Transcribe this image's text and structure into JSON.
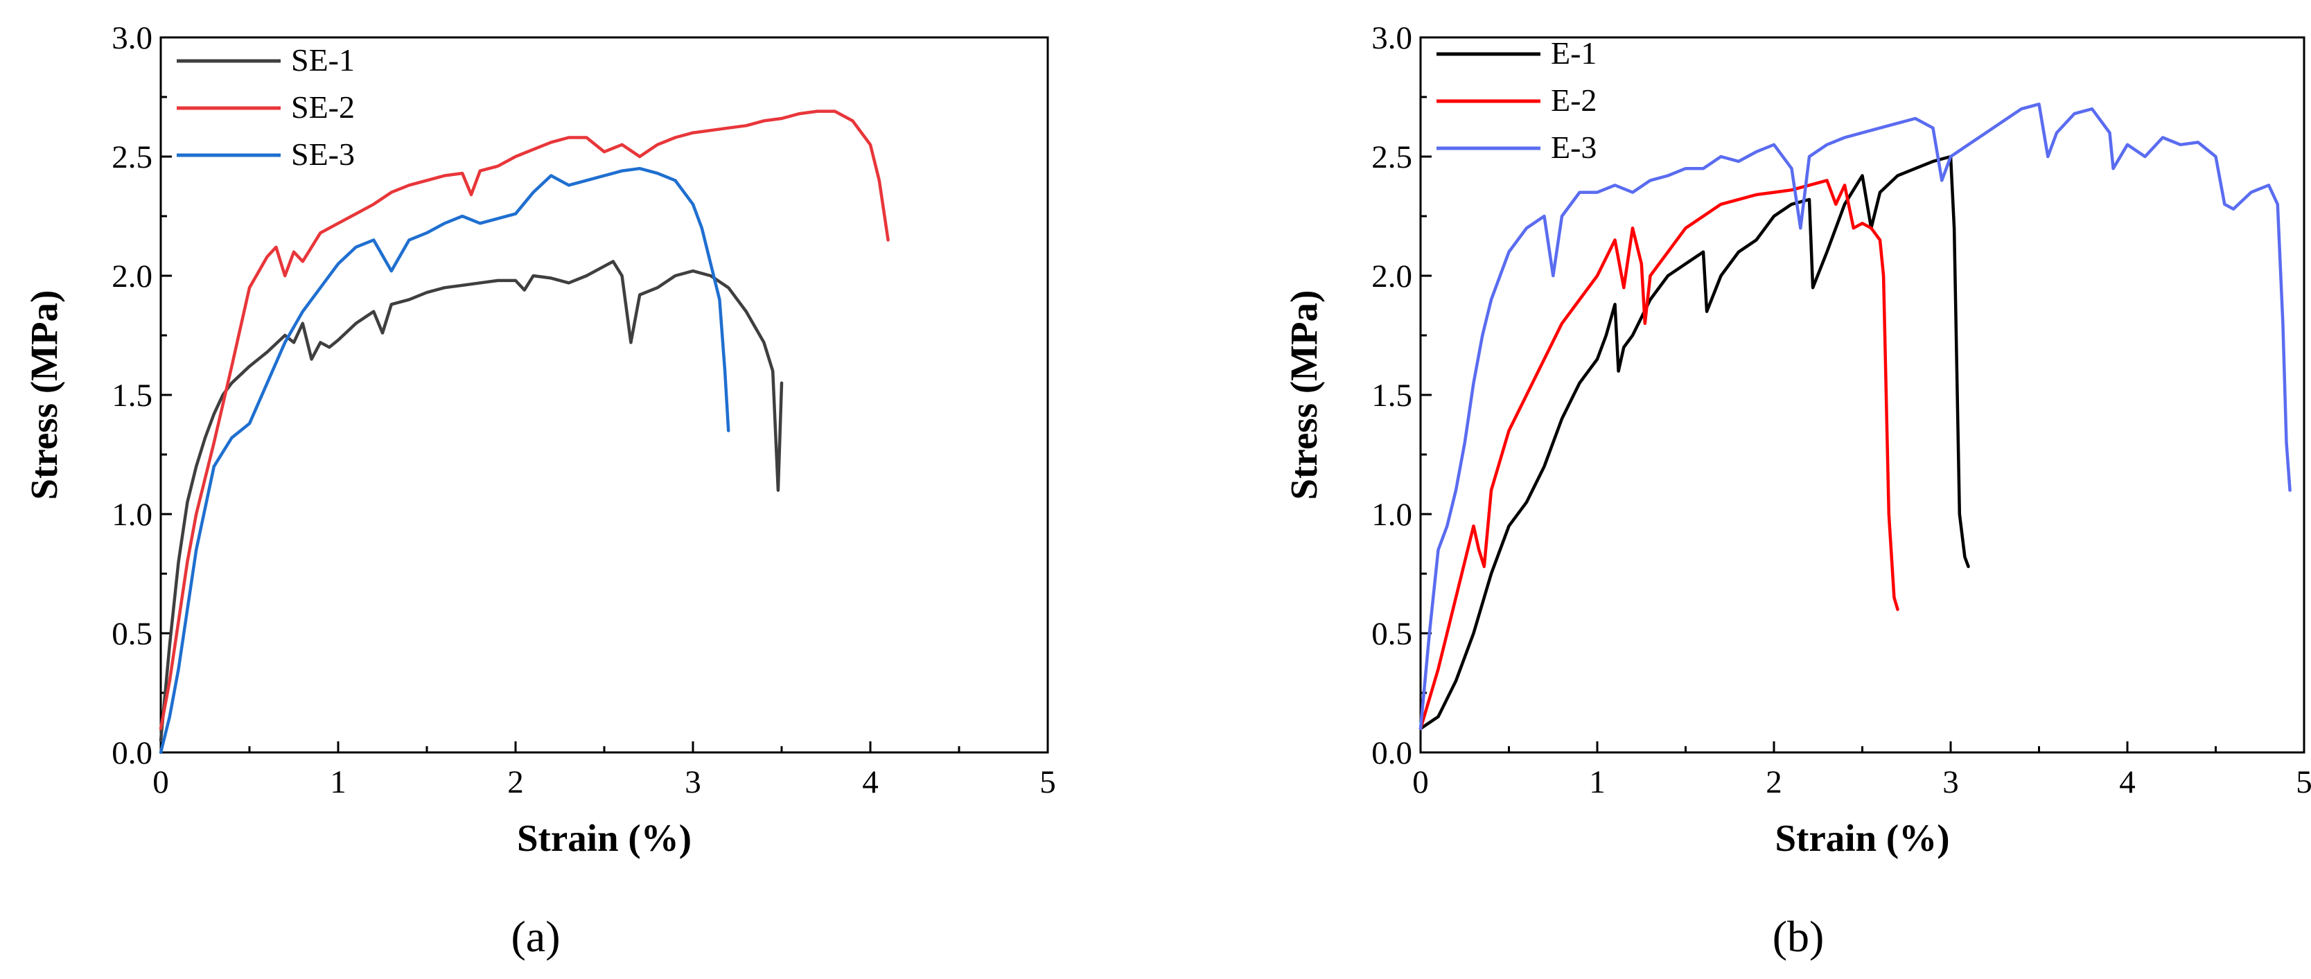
{
  "chart_data": [
    {
      "type": "line",
      "panel_label": "(a)",
      "xlabel": "Strain (%)",
      "ylabel": "Stress (MPa)",
      "xlim": [
        0,
        5
      ],
      "ylim": [
        0,
        3.0
      ],
      "xticks": [
        "0",
        "1",
        "2",
        "3",
        "4",
        "5"
      ],
      "yticks": [
        "0.0",
        "0.5",
        "1.0",
        "1.5",
        "2.0",
        "2.5",
        "3.0"
      ],
      "legend_position": "top-left",
      "series": [
        {
          "name": "SE-1",
          "color": "#3f3f3f",
          "x": [
            0,
            0.05,
            0.1,
            0.15,
            0.2,
            0.25,
            0.3,
            0.35,
            0.4,
            0.5,
            0.6,
            0.7,
            0.75,
            0.8,
            0.85,
            0.9,
            0.95,
            1.0,
            1.1,
            1.2,
            1.25,
            1.3,
            1.4,
            1.5,
            1.6,
            1.7,
            1.8,
            1.9,
            2.0,
            2.05,
            2.1,
            2.2,
            2.3,
            2.4,
            2.5,
            2.55,
            2.6,
            2.65,
            2.7,
            2.8,
            2.9,
            3.0,
            3.1,
            3.2,
            3.3,
            3.4,
            3.45,
            3.48,
            3.5
          ],
          "y": [
            0.05,
            0.45,
            0.8,
            1.05,
            1.2,
            1.32,
            1.42,
            1.5,
            1.55,
            1.62,
            1.68,
            1.75,
            1.72,
            1.8,
            1.65,
            1.72,
            1.7,
            1.73,
            1.8,
            1.85,
            1.76,
            1.88,
            1.9,
            1.93,
            1.95,
            1.96,
            1.97,
            1.98,
            1.98,
            1.94,
            2.0,
            1.99,
            1.97,
            2.0,
            2.04,
            2.06,
            2.0,
            1.72,
            1.92,
            1.95,
            2.0,
            2.02,
            2.0,
            1.95,
            1.85,
            1.72,
            1.6,
            1.1,
            1.55
          ]
        },
        {
          "name": "SE-2",
          "color": "#e8363a",
          "x": [
            0,
            0.05,
            0.1,
            0.15,
            0.2,
            0.3,
            0.4,
            0.5,
            0.6,
            0.65,
            0.7,
            0.75,
            0.8,
            0.9,
            1.0,
            1.1,
            1.2,
            1.3,
            1.4,
            1.5,
            1.6,
            1.7,
            1.75,
            1.8,
            1.9,
            2.0,
            2.1,
            2.2,
            2.3,
            2.4,
            2.5,
            2.6,
            2.7,
            2.8,
            2.9,
            3.0,
            3.1,
            3.2,
            3.3,
            3.4,
            3.5,
            3.6,
            3.7,
            3.8,
            3.9,
            4.0,
            4.05,
            4.08,
            4.1
          ],
          "y": [
            0.1,
            0.3,
            0.55,
            0.8,
            1.0,
            1.3,
            1.62,
            1.95,
            2.08,
            2.12,
            2.0,
            2.1,
            2.06,
            2.18,
            2.22,
            2.26,
            2.3,
            2.35,
            2.38,
            2.4,
            2.42,
            2.43,
            2.34,
            2.44,
            2.46,
            2.5,
            2.53,
            2.56,
            2.58,
            2.58,
            2.52,
            2.55,
            2.5,
            2.55,
            2.58,
            2.6,
            2.61,
            2.62,
            2.63,
            2.65,
            2.66,
            2.68,
            2.69,
            2.69,
            2.65,
            2.55,
            2.4,
            2.25,
            2.15
          ]
        },
        {
          "name": "SE-3",
          "color": "#1f6fd0",
          "x": [
            0,
            0.05,
            0.1,
            0.15,
            0.2,
            0.3,
            0.4,
            0.5,
            0.6,
            0.7,
            0.8,
            0.9,
            1.0,
            1.1,
            1.2,
            1.3,
            1.4,
            1.5,
            1.6,
            1.7,
            1.8,
            1.9,
            2.0,
            2.1,
            2.2,
            2.3,
            2.4,
            2.5,
            2.6,
            2.7,
            2.8,
            2.9,
            3.0,
            3.05,
            3.1,
            3.15,
            3.18,
            3.2
          ],
          "y": [
            0,
            0.15,
            0.35,
            0.6,
            0.85,
            1.2,
            1.32,
            1.38,
            1.55,
            1.72,
            1.85,
            1.95,
            2.05,
            2.12,
            2.15,
            2.02,
            2.15,
            2.18,
            2.22,
            2.25,
            2.22,
            2.24,
            2.26,
            2.35,
            2.42,
            2.38,
            2.4,
            2.42,
            2.44,
            2.45,
            2.43,
            2.4,
            2.3,
            2.2,
            2.05,
            1.9,
            1.6,
            1.35
          ]
        }
      ]
    },
    {
      "type": "line",
      "panel_label": "(b)",
      "xlabel": "Strain (%)",
      "ylabel": "Stress (MPa)",
      "xlim": [
        0,
        5
      ],
      "ylim": [
        0,
        3.0
      ],
      "xticks": [
        "0",
        "1",
        "2",
        "3",
        "4",
        "5"
      ],
      "yticks": [
        "0.0",
        "0.5",
        "1.0",
        "1.5",
        "2.0",
        "2.5",
        "3.0"
      ],
      "legend_position": "top-left",
      "series": [
        {
          "name": "E-1",
          "color": "#000000",
          "x": [
            0,
            0.1,
            0.2,
            0.3,
            0.4,
            0.5,
            0.6,
            0.7,
            0.8,
            0.9,
            1.0,
            1.05,
            1.1,
            1.12,
            1.15,
            1.2,
            1.3,
            1.4,
            1.5,
            1.6,
            1.62,
            1.7,
            1.8,
            1.9,
            2.0,
            2.1,
            2.2,
            2.22,
            2.3,
            2.4,
            2.5,
            2.55,
            2.6,
            2.7,
            2.8,
            2.9,
            3.0,
            3.02,
            3.05,
            3.08,
            3.1
          ],
          "y": [
            0.1,
            0.15,
            0.3,
            0.5,
            0.75,
            0.95,
            1.05,
            1.2,
            1.4,
            1.55,
            1.65,
            1.75,
            1.88,
            1.6,
            1.7,
            1.75,
            1.9,
            2.0,
            2.05,
            2.1,
            1.85,
            2.0,
            2.1,
            2.15,
            2.25,
            2.3,
            2.32,
            1.95,
            2.1,
            2.3,
            2.42,
            2.2,
            2.35,
            2.42,
            2.45,
            2.48,
            2.5,
            2.2,
            1.0,
            0.82,
            0.78
          ]
        },
        {
          "name": "E-2",
          "color": "#ff0000",
          "x": [
            0,
            0.1,
            0.2,
            0.3,
            0.33,
            0.36,
            0.4,
            0.5,
            0.6,
            0.7,
            0.8,
            0.9,
            1.0,
            1.1,
            1.15,
            1.2,
            1.25,
            1.27,
            1.3,
            1.4,
            1.5,
            1.6,
            1.7,
            1.8,
            1.9,
            2.0,
            2.1,
            2.2,
            2.3,
            2.35,
            2.4,
            2.45,
            2.5,
            2.55,
            2.6,
            2.62,
            2.65,
            2.68,
            2.7
          ],
          "y": [
            0.1,
            0.35,
            0.65,
            0.95,
            0.85,
            0.78,
            1.1,
            1.35,
            1.5,
            1.65,
            1.8,
            1.9,
            2.0,
            2.15,
            1.95,
            2.2,
            2.05,
            1.8,
            2.0,
            2.1,
            2.2,
            2.25,
            2.3,
            2.32,
            2.34,
            2.35,
            2.36,
            2.38,
            2.4,
            2.3,
            2.38,
            2.2,
            2.22,
            2.2,
            2.15,
            2.0,
            1.0,
            0.65,
            0.6
          ]
        },
        {
          "name": "E-3",
          "color": "#5a6cf0",
          "x": [
            0,
            0.05,
            0.1,
            0.15,
            0.2,
            0.25,
            0.3,
            0.35,
            0.4,
            0.5,
            0.6,
            0.7,
            0.75,
            0.8,
            0.9,
            1.0,
            1.1,
            1.2,
            1.3,
            1.4,
            1.5,
            1.6,
            1.7,
            1.8,
            1.9,
            2.0,
            2.1,
            2.15,
            2.2,
            2.3,
            2.4,
            2.5,
            2.6,
            2.7,
            2.8,
            2.9,
            2.95,
            3.0,
            3.1,
            3.2,
            3.3,
            3.4,
            3.5,
            3.55,
            3.6,
            3.7,
            3.8,
            3.9,
            3.92,
            4.0,
            4.1,
            4.2,
            4.3,
            4.4,
            4.5,
            4.55,
            4.6,
            4.7,
            4.8,
            4.85,
            4.88,
            4.9,
            4.92
          ],
          "y": [
            0.1,
            0.5,
            0.85,
            0.95,
            1.1,
            1.3,
            1.55,
            1.75,
            1.9,
            2.1,
            2.2,
            2.25,
            2.0,
            2.25,
            2.35,
            2.35,
            2.38,
            2.35,
            2.4,
            2.42,
            2.45,
            2.45,
            2.5,
            2.48,
            2.52,
            2.55,
            2.45,
            2.2,
            2.5,
            2.55,
            2.58,
            2.6,
            2.62,
            2.64,
            2.66,
            2.62,
            2.4,
            2.5,
            2.55,
            2.6,
            2.65,
            2.7,
            2.72,
            2.5,
            2.6,
            2.68,
            2.7,
            2.6,
            2.45,
            2.55,
            2.5,
            2.58,
            2.55,
            2.56,
            2.5,
            2.3,
            2.28,
            2.35,
            2.38,
            2.3,
            1.8,
            1.3,
            1.1
          ]
        }
      ]
    }
  ]
}
